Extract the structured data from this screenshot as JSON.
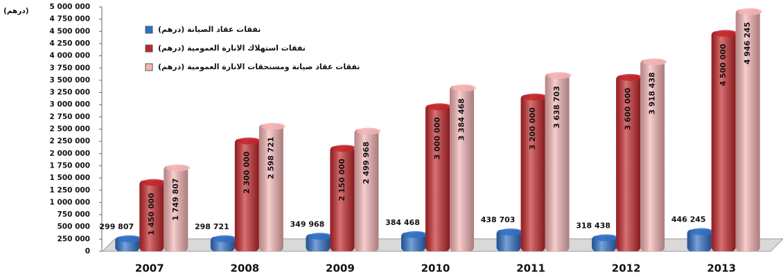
{
  "chart_data": {
    "type": "bar",
    "y_label": "(درهم)",
    "categories": [
      "2007",
      "2008",
      "2009",
      "2010",
      "2011",
      "2012",
      "2013"
    ],
    "series": [
      {
        "name": "نفقات عقاد الصيانة (درهم)",
        "color": "#2f6fc6",
        "values": [
          299807,
          298721,
          349968,
          384468,
          438703,
          318438,
          446245
        ],
        "value_labels": [
          "299 807",
          "298 721",
          "349 968",
          "384 468",
          "438 703",
          "318 438",
          "446 245"
        ]
      },
      {
        "name": "نفقات استهلاك الانارة العمومية (درهم)",
        "color": "#c3262a",
        "values": [
          1450000,
          2300000,
          2150000,
          3000000,
          3200000,
          3600000,
          4500000
        ],
        "value_labels": [
          "1 450 000",
          "2 300 000",
          "2 150 000",
          "3 000 000",
          "3 200 000",
          "3 600 000",
          "4 500 000"
        ]
      },
      {
        "name": "نفقات عقاد صيانة ومستحقات الانارة العمومية (درهم)",
        "color": "#f4b3b3",
        "values": [
          1749807,
          2598721,
          2499968,
          3384468,
          3638703,
          3918438,
          4946245
        ],
        "value_labels": [
          "1 749 807",
          "2 598 721",
          "2 499 968",
          "3 384 468",
          "3 638 703",
          "3 918 438",
          "4 946 245"
        ]
      }
    ],
    "ylim": [
      0,
      5000000
    ],
    "yticks": [
      0,
      {
        "value": 250000,
        "label": "250 000"
      },
      {
        "value": 500000,
        "label": "500 000"
      },
      {
        "value": 750000,
        "label": "750 000"
      },
      {
        "value": 1000000,
        "label": "1 000 000"
      },
      {
        "value": 1250000,
        "label": "1 250 000"
      },
      {
        "value": 1500000,
        "label": "1 500 000"
      },
      {
        "value": 1750000,
        "label": "1 750 000"
      },
      {
        "value": 2000000,
        "label": "2 000 000"
      },
      {
        "value": 2250000,
        "label": "2 250 000"
      },
      {
        "value": 2500000,
        "label": "2 500 000"
      },
      {
        "value": 2750000,
        "label": "2 750 000"
      },
      {
        "value": 3000000,
        "label": "3 000 000"
      },
      {
        "value": 3250000,
        "label": "3 250 000"
      },
      {
        "value": 3500000,
        "label": "3 500 000"
      },
      {
        "value": 3750000,
        "label": "3 750 000"
      },
      {
        "value": 4000000,
        "label": "4 000 000"
      },
      {
        "value": 4250000,
        "label": "4 250 000"
      },
      {
        "value": 4500000,
        "label": "4 500 000"
      },
      {
        "value": 4750000,
        "label": "4 750 000"
      },
      {
        "value": 5000000,
        "label": "5 000 000"
      }
    ],
    "grid": false
  }
}
